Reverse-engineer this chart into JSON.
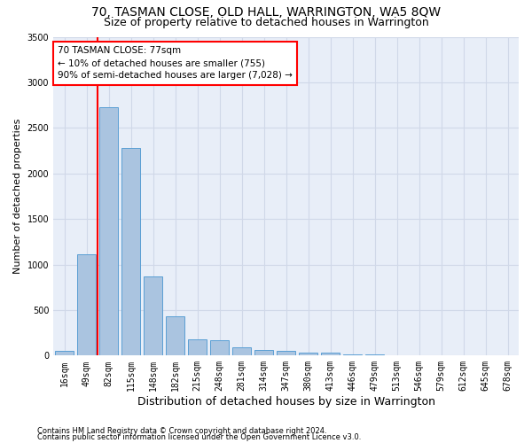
{
  "title": "70, TASMAN CLOSE, OLD HALL, WARRINGTON, WA5 8QW",
  "subtitle": "Size of property relative to detached houses in Warrington",
  "xlabel": "Distribution of detached houses by size in Warrington",
  "ylabel": "Number of detached properties",
  "categories": [
    "16sqm",
    "49sqm",
    "82sqm",
    "115sqm",
    "148sqm",
    "182sqm",
    "215sqm",
    "248sqm",
    "281sqm",
    "314sqm",
    "347sqm",
    "380sqm",
    "413sqm",
    "446sqm",
    "479sqm",
    "513sqm",
    "546sqm",
    "579sqm",
    "612sqm",
    "645sqm",
    "678sqm"
  ],
  "values": [
    50,
    1110,
    2730,
    2280,
    870,
    430,
    175,
    165,
    95,
    60,
    50,
    30,
    30,
    15,
    10,
    0,
    0,
    0,
    0,
    0,
    0
  ],
  "bar_color": "#aac4e0",
  "bar_edge_color": "#5a9fd4",
  "grid_color": "#d0d8e8",
  "background_color": "#e8eef8",
  "vline_color": "red",
  "annotation_title": "70 TASMAN CLOSE: 77sqm",
  "annotation_line1": "← 10% of detached houses are smaller (755)",
  "annotation_line2": "90% of semi-detached houses are larger (7,028) →",
  "annotation_box_color": "white",
  "annotation_edge_color": "red",
  "ylim": [
    0,
    3500
  ],
  "yticks": [
    0,
    500,
    1000,
    1500,
    2000,
    2500,
    3000,
    3500
  ],
  "footer1": "Contains HM Land Registry data © Crown copyright and database right 2024.",
  "footer2": "Contains public sector information licensed under the Open Government Licence v3.0.",
  "title_fontsize": 10,
  "subtitle_fontsize": 9,
  "xlabel_fontsize": 9,
  "ylabel_fontsize": 8,
  "tick_fontsize": 7,
  "footer_fontsize": 6,
  "annot_fontsize": 7.5
}
